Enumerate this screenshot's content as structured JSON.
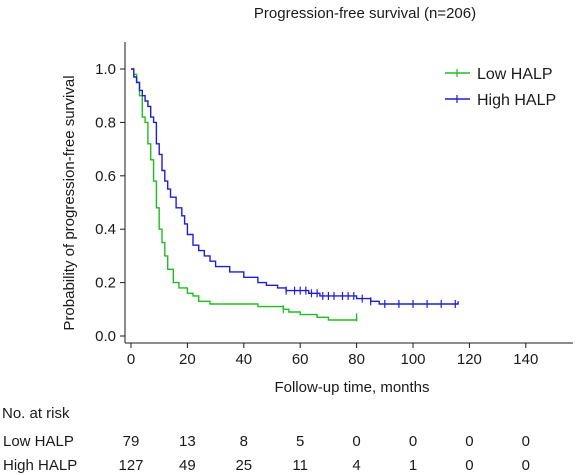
{
  "chart_data": {
    "type": "line",
    "subtype": "kaplan-meier step curve",
    "title": "Progression-free survival (n=206)",
    "xlabel": "Follow-up time, months",
    "ylabel": "Probability of progression-free survival",
    "xlim": [
      0,
      150
    ],
    "ylim": [
      0,
      1.05
    ],
    "xticks": [
      "0",
      "20",
      "40",
      "60",
      "80",
      "100",
      "120",
      "140"
    ],
    "yticks": [
      "0.0",
      "0.2",
      "0.4",
      "0.6",
      "0.8",
      "1.0"
    ],
    "grid": false,
    "legend_position": "top-right",
    "series": [
      {
        "name": "Low HALP",
        "color": "#22bb22",
        "steps": [
          [
            0,
            1.0
          ],
          [
            1,
            0.98
          ],
          [
            2,
            0.95
          ],
          [
            3,
            0.9
          ],
          [
            4,
            0.82
          ],
          [
            5,
            0.8
          ],
          [
            6,
            0.72
          ],
          [
            7,
            0.66
          ],
          [
            8,
            0.58
          ],
          [
            9,
            0.48
          ],
          [
            10,
            0.4
          ],
          [
            11,
            0.35
          ],
          [
            12,
            0.3
          ],
          [
            13,
            0.25
          ],
          [
            15,
            0.2
          ],
          [
            17,
            0.18
          ],
          [
            20,
            0.16
          ],
          [
            22,
            0.15
          ],
          [
            24,
            0.13
          ],
          [
            28,
            0.12
          ],
          [
            45,
            0.11
          ],
          [
            54,
            0.1
          ],
          [
            56,
            0.09
          ],
          [
            60,
            0.08
          ],
          [
            66,
            0.07
          ],
          [
            70,
            0.06
          ],
          [
            80,
            0.07
          ]
        ],
        "censor_x": [
          54,
          80
        ]
      },
      {
        "name": "High HALP",
        "color": "#1f1fd0",
        "steps": [
          [
            0,
            1.0
          ],
          [
            1,
            0.97
          ],
          [
            2,
            0.95
          ],
          [
            3,
            0.92
          ],
          [
            4,
            0.9
          ],
          [
            5,
            0.88
          ],
          [
            6,
            0.86
          ],
          [
            7,
            0.82
          ],
          [
            8,
            0.8
          ],
          [
            9,
            0.72
          ],
          [
            10,
            0.68
          ],
          [
            11,
            0.62
          ],
          [
            12,
            0.58
          ],
          [
            13,
            0.55
          ],
          [
            14,
            0.52
          ],
          [
            16,
            0.48
          ],
          [
            18,
            0.45
          ],
          [
            19,
            0.42
          ],
          [
            20,
            0.38
          ],
          [
            22,
            0.34
          ],
          [
            24,
            0.32
          ],
          [
            26,
            0.3
          ],
          [
            28,
            0.28
          ],
          [
            30,
            0.26
          ],
          [
            35,
            0.24
          ],
          [
            40,
            0.22
          ],
          [
            45,
            0.2
          ],
          [
            48,
            0.19
          ],
          [
            52,
            0.18
          ],
          [
            55,
            0.17
          ],
          [
            63,
            0.16
          ],
          [
            67,
            0.15
          ],
          [
            78,
            0.15
          ],
          [
            80,
            0.14
          ],
          [
            85,
            0.13
          ],
          [
            88,
            0.12
          ],
          [
            116,
            0.13
          ]
        ],
        "censor_x": [
          55,
          58,
          60,
          62,
          64,
          66,
          68,
          70,
          72,
          75,
          77,
          79,
          82,
          85,
          90,
          95,
          100,
          105,
          110,
          115
        ]
      }
    ]
  },
  "risk_table": {
    "title": "No. at risk",
    "rows": [
      {
        "label": "Low HALP",
        "values": [
          "79",
          "13",
          "8",
          "5",
          "0",
          "0",
          "0",
          "0"
        ]
      },
      {
        "label": "High HALP",
        "values": [
          "127",
          "49",
          "25",
          "11",
          "4",
          "1",
          "0",
          "0"
        ]
      }
    ]
  }
}
